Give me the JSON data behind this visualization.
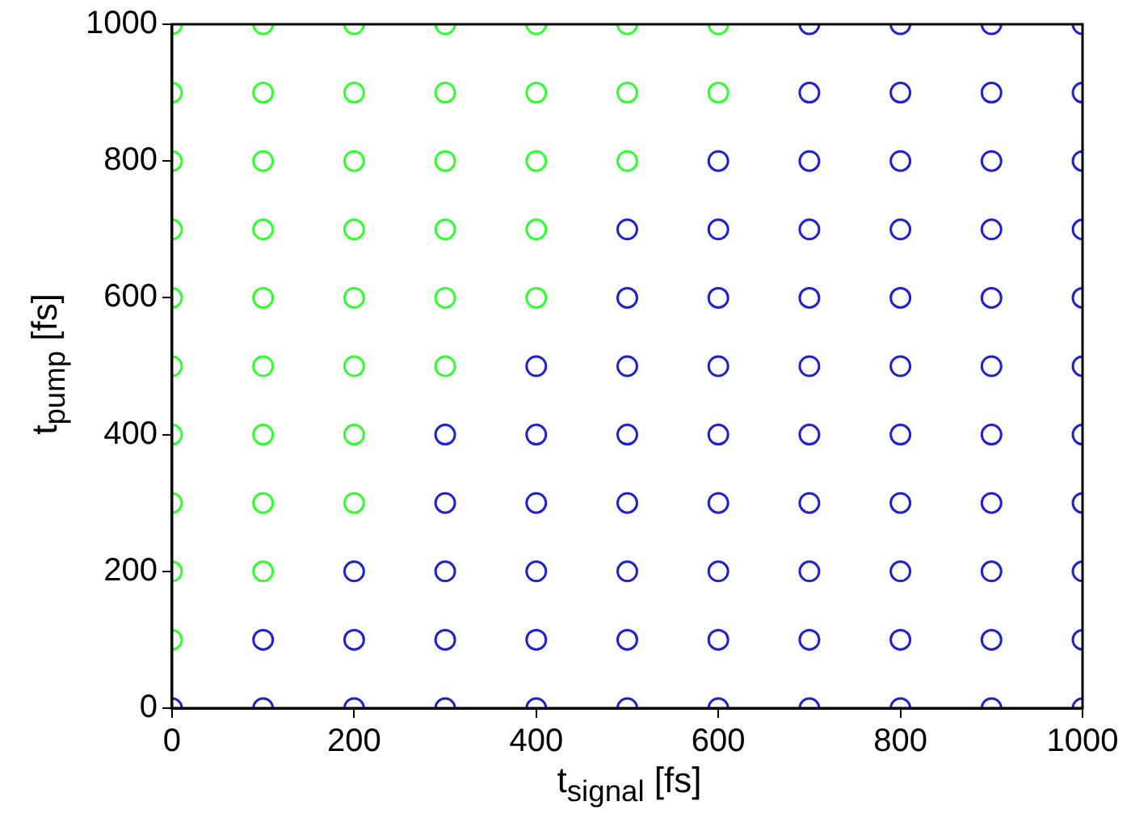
{
  "chart_data": {
    "type": "scatter",
    "xlabel": "t$_{signal}$ [fs]",
    "ylabel": "t$_{pump}$ [fs]",
    "xlim": [
      0,
      1000
    ],
    "ylim": [
      0,
      1000
    ],
    "xticks": [
      0,
      200,
      400,
      600,
      800,
      1000
    ],
    "yticks": [
      0,
      200,
      400,
      600,
      800,
      1000
    ],
    "grid": false,
    "legend": false,
    "marker": "circle",
    "series": [
      {
        "color": "#33ff33",
        "x": [
          0,
          0,
          0,
          0,
          0,
          0,
          0,
          0,
          0,
          0,
          100,
          100,
          100,
          100,
          100,
          100,
          100,
          100,
          100,
          200,
          200,
          200,
          200,
          200,
          200,
          200,
          200,
          300,
          300,
          300,
          300,
          300,
          300,
          400,
          400,
          400,
          400,
          400,
          500,
          500,
          500,
          600,
          600
        ],
        "values": [
          100,
          200,
          300,
          400,
          500,
          600,
          700,
          800,
          900,
          1000,
          200,
          300,
          400,
          500,
          600,
          700,
          800,
          900,
          1000,
          300,
          400,
          500,
          600,
          700,
          800,
          900,
          1000,
          500,
          600,
          700,
          800,
          900,
          1000,
          600,
          700,
          800,
          900,
          1000,
          800,
          900,
          1000,
          900,
          1000
        ]
      },
      {
        "color": "#2222cc",
        "x": [
          0,
          100,
          100,
          200,
          200,
          200,
          300,
          300,
          300,
          300,
          300,
          400,
          400,
          400,
          400,
          400,
          400,
          500,
          500,
          500,
          500,
          500,
          500,
          500,
          500,
          600,
          600,
          600,
          600,
          600,
          600,
          600,
          600,
          600,
          700,
          700,
          700,
          700,
          700,
          700,
          700,
          700,
          700,
          700,
          700,
          800,
          800,
          800,
          800,
          800,
          800,
          800,
          800,
          800,
          800,
          800,
          900,
          900,
          900,
          900,
          900,
          900,
          900,
          900,
          900,
          900,
          900,
          1000,
          1000,
          1000,
          1000,
          1000,
          1000,
          1000,
          1000,
          1000,
          1000,
          1000
        ],
        "values": [
          0,
          0,
          100,
          0,
          100,
          200,
          0,
          100,
          200,
          300,
          400,
          0,
          100,
          200,
          300,
          400,
          500,
          0,
          100,
          200,
          300,
          400,
          500,
          600,
          700,
          0,
          100,
          200,
          300,
          400,
          500,
          600,
          700,
          800,
          0,
          100,
          200,
          300,
          400,
          500,
          600,
          700,
          800,
          900,
          1000,
          0,
          100,
          200,
          300,
          400,
          500,
          600,
          700,
          800,
          900,
          1000,
          0,
          100,
          200,
          300,
          400,
          500,
          600,
          700,
          800,
          900,
          1000,
          0,
          100,
          200,
          300,
          400,
          500,
          600,
          700,
          800,
          900,
          1000
        ]
      }
    ]
  }
}
